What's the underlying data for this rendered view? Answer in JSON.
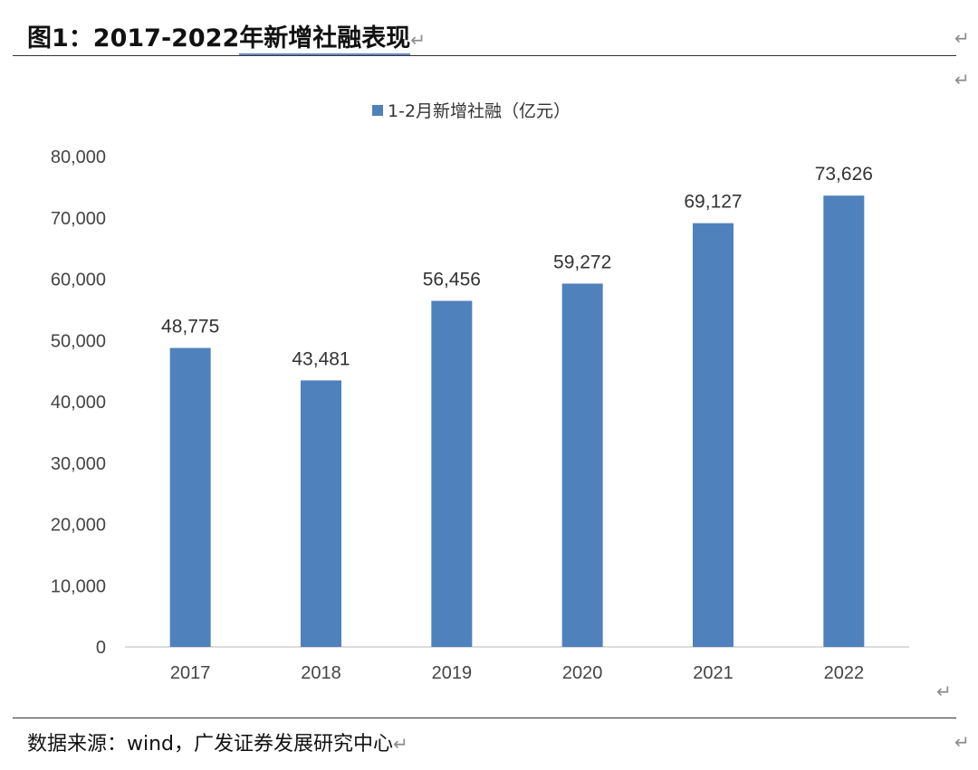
{
  "figure": {
    "caption_label": "图1：",
    "caption_years": "2017-2022",
    "caption_text": "年新增社融表现",
    "return_mark": "↵"
  },
  "source_note": "数据来源：wind，广发证券发展研究中心",
  "chart_data": {
    "type": "bar",
    "title": "",
    "legend": "1-2月新增社融（亿元）",
    "categories": [
      "2017",
      "2018",
      "2019",
      "2020",
      "2021",
      "2022"
    ],
    "series": [
      {
        "name": "1-2月新增社融（亿元）",
        "values": [
          48775,
          43481,
          56456,
          59272,
          69127,
          73626
        ]
      }
    ],
    "data_labels": [
      "48,775",
      "43,481",
      "56,456",
      "59,272",
      "69,127",
      "73,626"
    ],
    "y_ticks": [
      "0",
      "10,000",
      "20,000",
      "30,000",
      "40,000",
      "50,000",
      "60,000",
      "70,000",
      "80,000"
    ],
    "ylim": [
      0,
      80000
    ],
    "xlabel": "",
    "ylabel": "",
    "grid": false,
    "legend_position": "top-center",
    "bar_color": "#4f81bd"
  }
}
